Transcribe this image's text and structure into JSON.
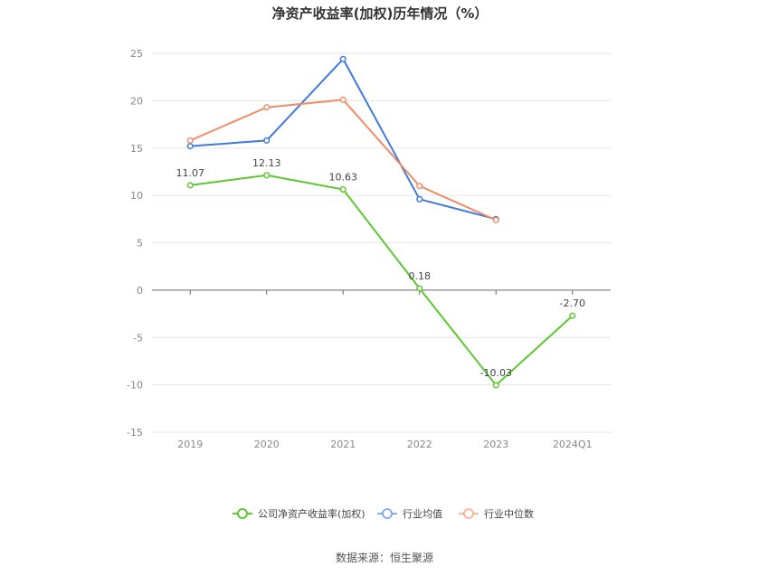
{
  "chart_data": {
    "type": "line",
    "title": "净资产收益率(加权)历年情况（%）",
    "categories": [
      "2019",
      "2020",
      "2021",
      "2022",
      "2023",
      "2024Q1"
    ],
    "ylim": [
      -15,
      25
    ],
    "yticks": [
      25,
      20,
      15,
      10,
      5,
      0,
      -5,
      -10,
      -15
    ],
    "grid": true,
    "legend_position": "bottom",
    "series": [
      {
        "name": "公司净资产收益率(加权)",
        "color": "#5cc72f",
        "values": [
          11.07,
          12.13,
          10.63,
          0.18,
          -10.03,
          -2.7
        ],
        "labels": [
          "11.07",
          "12.13",
          "10.63",
          "0.18",
          "-10.03",
          "-2.70"
        ]
      },
      {
        "name": "行业均值",
        "color": "#3f7bdc",
        "values": [
          15.2,
          15.8,
          24.4,
          9.6,
          7.5,
          null
        ],
        "labels": []
      },
      {
        "name": "行业中位数",
        "color": "#f28c68",
        "values": [
          15.8,
          19.3,
          20.1,
          11.0,
          7.4,
          null
        ],
        "labels": []
      }
    ],
    "source": "数据来源：恒生聚源"
  }
}
